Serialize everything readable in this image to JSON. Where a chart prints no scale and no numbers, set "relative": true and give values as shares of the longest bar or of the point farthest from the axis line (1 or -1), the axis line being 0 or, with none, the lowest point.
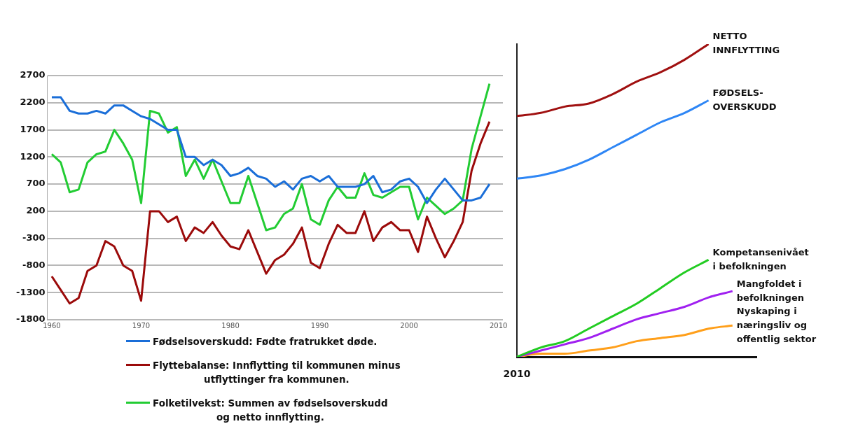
{
  "chart_data": [
    {
      "type": "line",
      "x": [
        1960,
        1961,
        1962,
        1963,
        1964,
        1965,
        1966,
        1967,
        1968,
        1969,
        1970,
        1971,
        1972,
        1973,
        1974,
        1975,
        1976,
        1977,
        1978,
        1979,
        1980,
        1981,
        1982,
        1983,
        1984,
        1985,
        1986,
        1987,
        1988,
        1989,
        1990,
        1991,
        1992,
        1993,
        1994,
        1995,
        1996,
        1997,
        1998,
        1999,
        2000,
        2001,
        2002,
        2003,
        2004,
        2005,
        2006,
        2007,
        2008,
        2009
      ],
      "series": [
        {
          "name": "Fødselsoverskudd: Fødte fratrukket døde.",
          "color": "#1a6ed8",
          "values": [
            2300,
            2300,
            2050,
            2000,
            2000,
            2050,
            2000,
            2150,
            2150,
            2050,
            1950,
            1900,
            1800,
            1700,
            1700,
            1200,
            1200,
            1050,
            1150,
            1050,
            850,
            900,
            1000,
            850,
            800,
            650,
            750,
            600,
            800,
            850,
            750,
            850,
            650,
            650,
            650,
            700,
            850,
            550,
            600,
            750,
            800,
            650,
            350,
            600,
            800,
            600,
            400,
            400,
            450,
            700
          ]
        },
        {
          "name": "Flyttebalanse: Innflytting til kommunen minus\nutflyttinger fra kommunen.",
          "color": "#9b0a0a",
          "values": [
            -1000,
            -1250,
            -1500,
            -1400,
            -900,
            -800,
            -350,
            -450,
            -800,
            -900,
            -1450,
            200,
            200,
            0,
            100,
            -350,
            -100,
            -200,
            0,
            -250,
            -450,
            -500,
            -150,
            -550,
            -950,
            -700,
            -600,
            -400,
            -100,
            -750,
            -850,
            -400,
            -50,
            -200,
            -200,
            200,
            -350,
            -100,
            0,
            -150,
            -150,
            -550,
            100,
            -300,
            -650,
            -350,
            0,
            950,
            1450,
            1850
          ]
        },
        {
          "name": "Folketilvekst: Summen av fødselsoverskudd\nog netto innflytting.",
          "color": "#22cc33",
          "values": [
            1250,
            1100,
            550,
            600,
            1100,
            1250,
            1300,
            1700,
            1450,
            1150,
            350,
            2050,
            2000,
            1650,
            1750,
            850,
            1150,
            800,
            1150,
            750,
            350,
            350,
            850,
            350,
            -150,
            -100,
            150,
            250,
            700,
            50,
            -50,
            400,
            650,
            450,
            450,
            900,
            500,
            450,
            550,
            650,
            650,
            50,
            450,
            300,
            150,
            250,
            400,
            1350,
            1950,
            2550
          ]
        }
      ],
      "xlim": [
        1959.5,
        2010.5
      ],
      "xticks": [
        1960,
        1970,
        1980,
        1990,
        2000,
        2010
      ],
      "ylim": [
        -1800,
        2700
      ],
      "yticks": [
        -1800,
        -1300,
        -800,
        -300,
        200,
        700,
        1200,
        1700,
        2200,
        2700
      ],
      "grid": "y",
      "legend": "bottom"
    },
    {
      "type": "line",
      "relative": true,
      "categories": [
        null,
        null,
        null,
        null,
        null,
        null,
        null,
        null,
        null,
        null,
        null
      ],
      "annotations": [
        "2010"
      ],
      "series": [
        {
          "name": "NETTO\nINNFLYTTING",
          "color": "#a01010",
          "values": [
            0.77,
            0.78,
            0.8,
            0.81,
            0.84,
            0.88,
            0.91,
            0.95,
            1,
            null,
            null
          ]
        },
        {
          "name": "FØDSELS-\nOVERSKUDD",
          "color": "#2e86f5",
          "values": [
            0.57,
            0.58,
            0.6,
            0.63,
            0.67,
            0.71,
            0.75,
            0.78,
            0.82,
            null,
            null
          ]
        },
        {
          "name": "Kompetansenivået\ni befolkningen",
          "color": "#22cc22",
          "values": [
            0,
            0.03,
            0.05,
            0.09,
            0.13,
            0.17,
            0.22,
            0.27,
            0.31,
            null,
            null
          ]
        },
        {
          "name": "Mangfoldet i\nbefolkningen",
          "color": "#a020f0",
          "values": [
            0,
            0.02,
            0.04,
            0.06,
            0.09,
            0.12,
            0.14,
            0.16,
            0.19,
            0.21,
            null
          ]
        },
        {
          "name": "Nyskaping i\nnæringsliv og\noffentlig sektor",
          "color": "#ff9f1a",
          "values": [
            0,
            0.01,
            0.01,
            0.02,
            0.03,
            0.05,
            0.06,
            0.07,
            0.09,
            0.1,
            null
          ]
        }
      ]
    }
  ]
}
